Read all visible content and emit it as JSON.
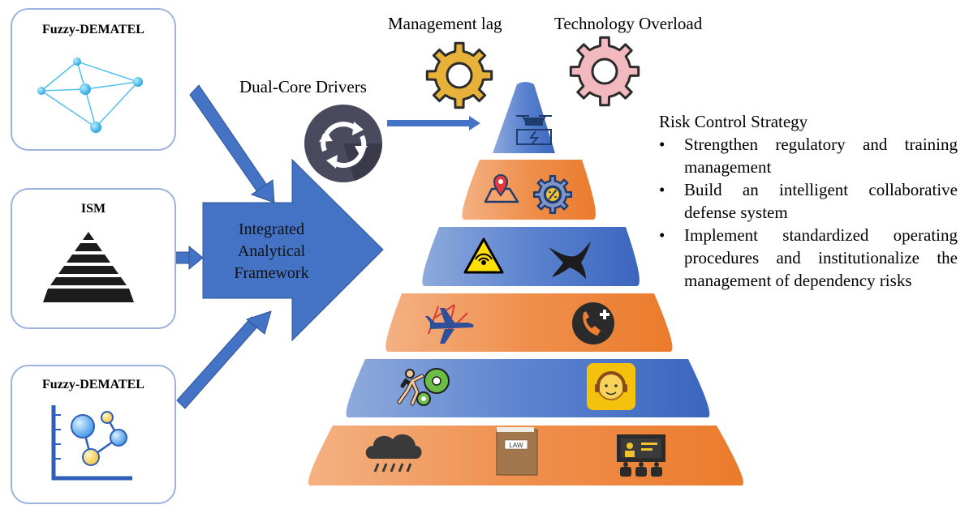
{
  "left_boxes": [
    {
      "title": "Fuzzy-DEMATEL",
      "icon": "network-graph-icon"
    },
    {
      "title": "ISM",
      "icon": "pyramid-icon"
    },
    {
      "title": "Fuzzy-DEMATEL",
      "icon": "scatter-graph-icon"
    }
  ],
  "framework": {
    "line1": "Integrated",
    "line2": "Analytical",
    "line3": "Framework"
  },
  "drivers": {
    "label": "Dual-Core Drivers",
    "icon": "cycle-arrows-icon"
  },
  "top_gears": [
    {
      "label": "Management lag",
      "color": "#e8b23a"
    },
    {
      "label": "Technology Overload",
      "color": "#f2b9bf"
    }
  ],
  "strategy": {
    "title": "Risk Control Strategy",
    "bullet": "•",
    "items": [
      "Strengthen regulatory and training management",
      " Build an intelligent collaborative defense system",
      "Implement standardized operating procedures and institutionalize the management of dependency risks"
    ]
  },
  "pyramid_levels": [
    {
      "color": "blue",
      "icons": [
        "drone-battery-icon"
      ]
    },
    {
      "color": "orange",
      "icons": [
        "map-pin-icon",
        "gear-percent-icon"
      ]
    },
    {
      "color": "blue",
      "icons": [
        "warning-sign-icon",
        "bird-icon"
      ]
    },
    {
      "color": "orange",
      "icons": [
        "airplane-route-icon",
        "phone-plus-icon"
      ]
    },
    {
      "color": "blue",
      "icons": [
        "person-pushing-gears-icon",
        "support-agent-icon"
      ]
    },
    {
      "color": "orange",
      "icons": [
        "rain-cloud-icon",
        "law-book-icon",
        "presentation-icon"
      ]
    }
  ],
  "law_text": "LAW",
  "colors": {
    "blue": "#4472c4",
    "orange": "#ed7d31",
    "box_border": "#9db3dd"
  }
}
